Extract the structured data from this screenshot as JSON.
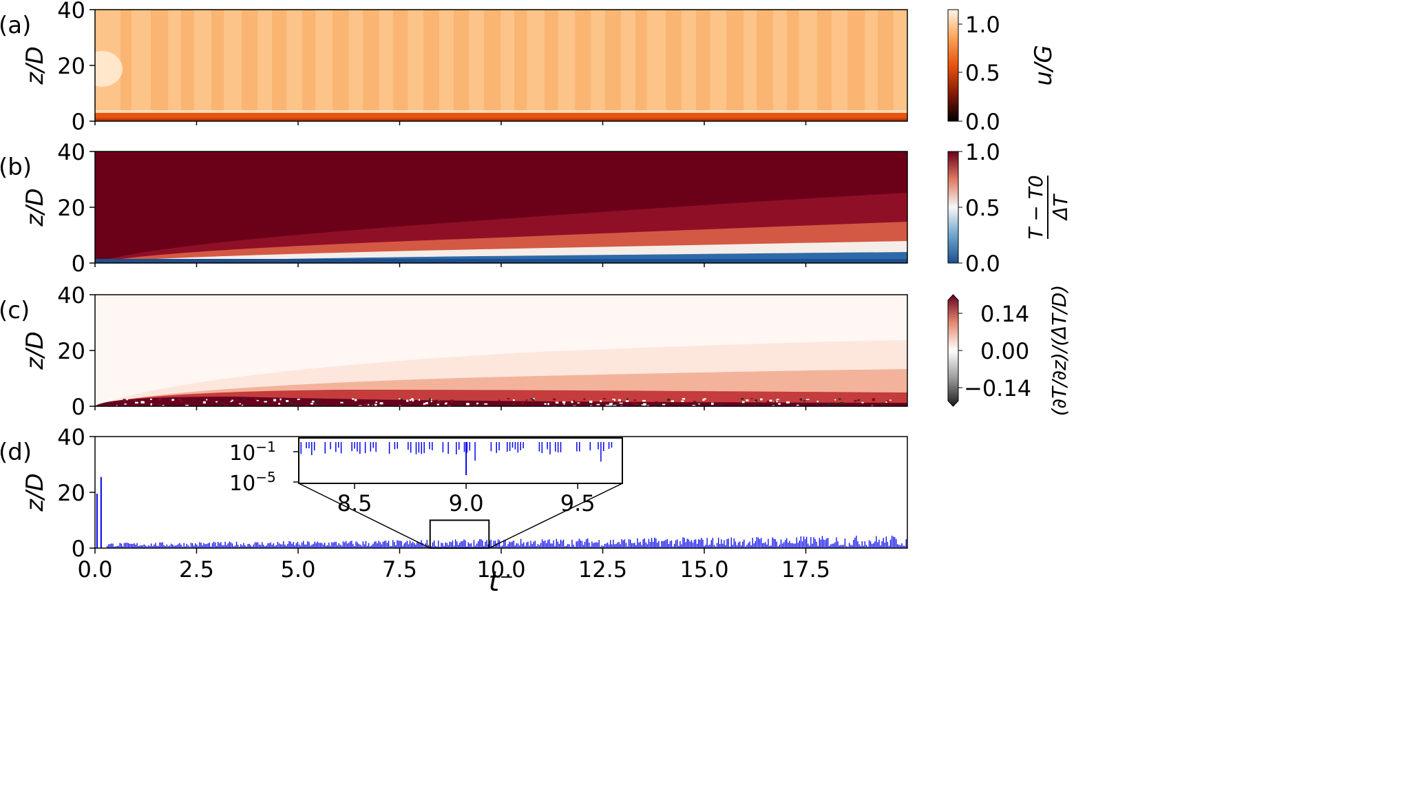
{
  "chart_data": [
    {
      "type": "heatmap",
      "panel_label": "(a)",
      "ylabel": "z/D",
      "ylim": [
        0,
        40
      ],
      "yticks": [
        "0",
        "20",
        "40"
      ],
      "xlim": [
        0,
        20
      ],
      "colorbar": {
        "label": "u/G",
        "range": [
          0.0,
          1.15
        ],
        "ticks": [
          "0.0",
          "0.5",
          "1.0"
        ]
      },
      "colors": {
        "low": "#000000",
        "mid": "#e8530e",
        "high": "#fff4e6",
        "base": "#fcc488",
        "stripe": "#f9b06c"
      }
    },
    {
      "type": "heatmap",
      "panel_label": "(b)",
      "ylabel": "z/D",
      "ylim": [
        0,
        40
      ],
      "yticks": [
        "0",
        "20",
        "40"
      ],
      "xlim": [
        0,
        20
      ],
      "colorbar": {
        "label_top": "T − T0",
        "label_bottom": "ΔT",
        "range": [
          0.0,
          1.0
        ],
        "ticks": [
          "0.0",
          "0.5",
          "1.0"
        ]
      },
      "colors": {
        "low": "#1d4f8e",
        "mid": "#f7f7f7",
        "high": "#6b0119"
      }
    },
    {
      "type": "heatmap",
      "panel_label": "(c)",
      "ylabel": "z/D",
      "ylim": [
        0,
        40
      ],
      "yticks": [
        "0",
        "20",
        "40"
      ],
      "xlim": [
        0,
        20
      ],
      "colorbar": {
        "label": "(∂T/∂z)/(ΔT/D)",
        "range": [
          -0.14,
          0.14
        ],
        "ticks": [
          "−0.14",
          "0.00",
          "0.14"
        ]
      },
      "colors": {
        "low": "#1a1a1a",
        "mid": "#ffffff",
        "high": "#67001f"
      }
    },
    {
      "type": "bar",
      "panel_label": "(d)",
      "ylabel": "z/D",
      "xlabel": "t⁻",
      "ylim": [
        0,
        40
      ],
      "yticks": [
        "0",
        "20",
        "40"
      ],
      "xlim": [
        0,
        20
      ],
      "xticks": [
        "0.0",
        "2.5",
        "5.0",
        "7.5",
        "10.0",
        "12.5",
        "15.0",
        "17.5"
      ],
      "color": "#0000ee",
      "early_spikes": [
        {
          "t": 0.05,
          "z": 19.5
        },
        {
          "t": 0.15,
          "z": 25.5
        }
      ],
      "typical_height_range": [
        0.5,
        4.0
      ],
      "zoom_box": {
        "t_range": [
          8.25,
          9.7
        ],
        "z_range": [
          0,
          10
        ]
      },
      "inset": {
        "yscale": "log",
        "yticks": [
          "10",
          "10"
        ],
        "ytick_exponents": [
          "−1",
          "−5"
        ],
        "xticks": [
          "8.5",
          "9.0",
          "9.5"
        ],
        "xlim": [
          8.25,
          9.7
        ]
      }
    }
  ]
}
